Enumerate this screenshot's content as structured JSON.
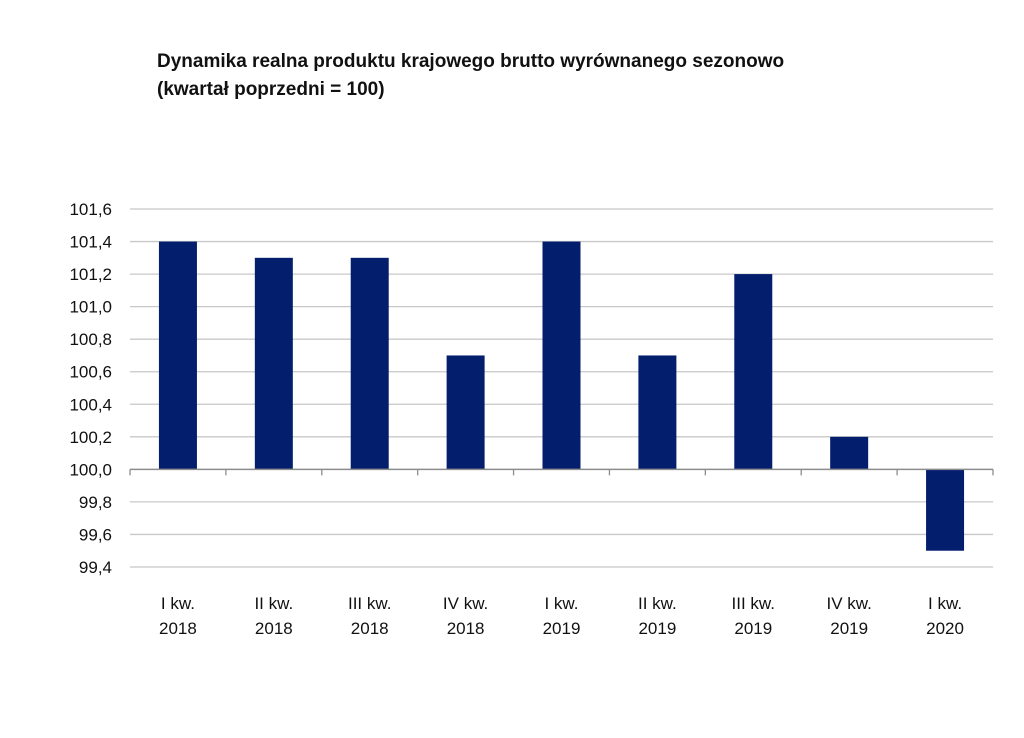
{
  "chart_data": {
    "type": "bar",
    "title": "Dynamika realna produktu krajowego brutto wyrównanego sezonowo",
    "subtitle": "(kwartał poprzedni = 100)",
    "xlabel": "",
    "ylabel": "",
    "categories": [
      [
        "I kw.",
        "2018"
      ],
      [
        "II kw.",
        "2018"
      ],
      [
        "III kw.",
        "2018"
      ],
      [
        "IV kw.",
        "2018"
      ],
      [
        "I kw.",
        "2019"
      ],
      [
        "II kw.",
        "2019"
      ],
      [
        "III kw.",
        "2019"
      ],
      [
        "IV kw.",
        "2019"
      ],
      [
        "I kw.",
        "2020"
      ]
    ],
    "values": [
      101.4,
      101.3,
      101.3,
      100.7,
      101.4,
      100.7,
      101.2,
      100.2,
      99.5
    ],
    "baseline": 100.0,
    "ylim": [
      99.4,
      101.6
    ],
    "yticks": [
      101.6,
      101.4,
      101.2,
      101.0,
      100.8,
      100.6,
      100.4,
      100.2,
      100.0,
      99.8,
      99.6,
      99.4
    ],
    "ytick_labels": [
      "101,6",
      "101,4",
      "101,2",
      "101,0",
      "100,8",
      "100,6",
      "100,4",
      "100,2",
      "100,0",
      "99,8",
      "99,6",
      "99,4"
    ],
    "grid": true,
    "legend": "none",
    "colors": {
      "bar": "#041e6e",
      "grid": "#c8c8c8",
      "axis": "#8c8c8c"
    }
  }
}
